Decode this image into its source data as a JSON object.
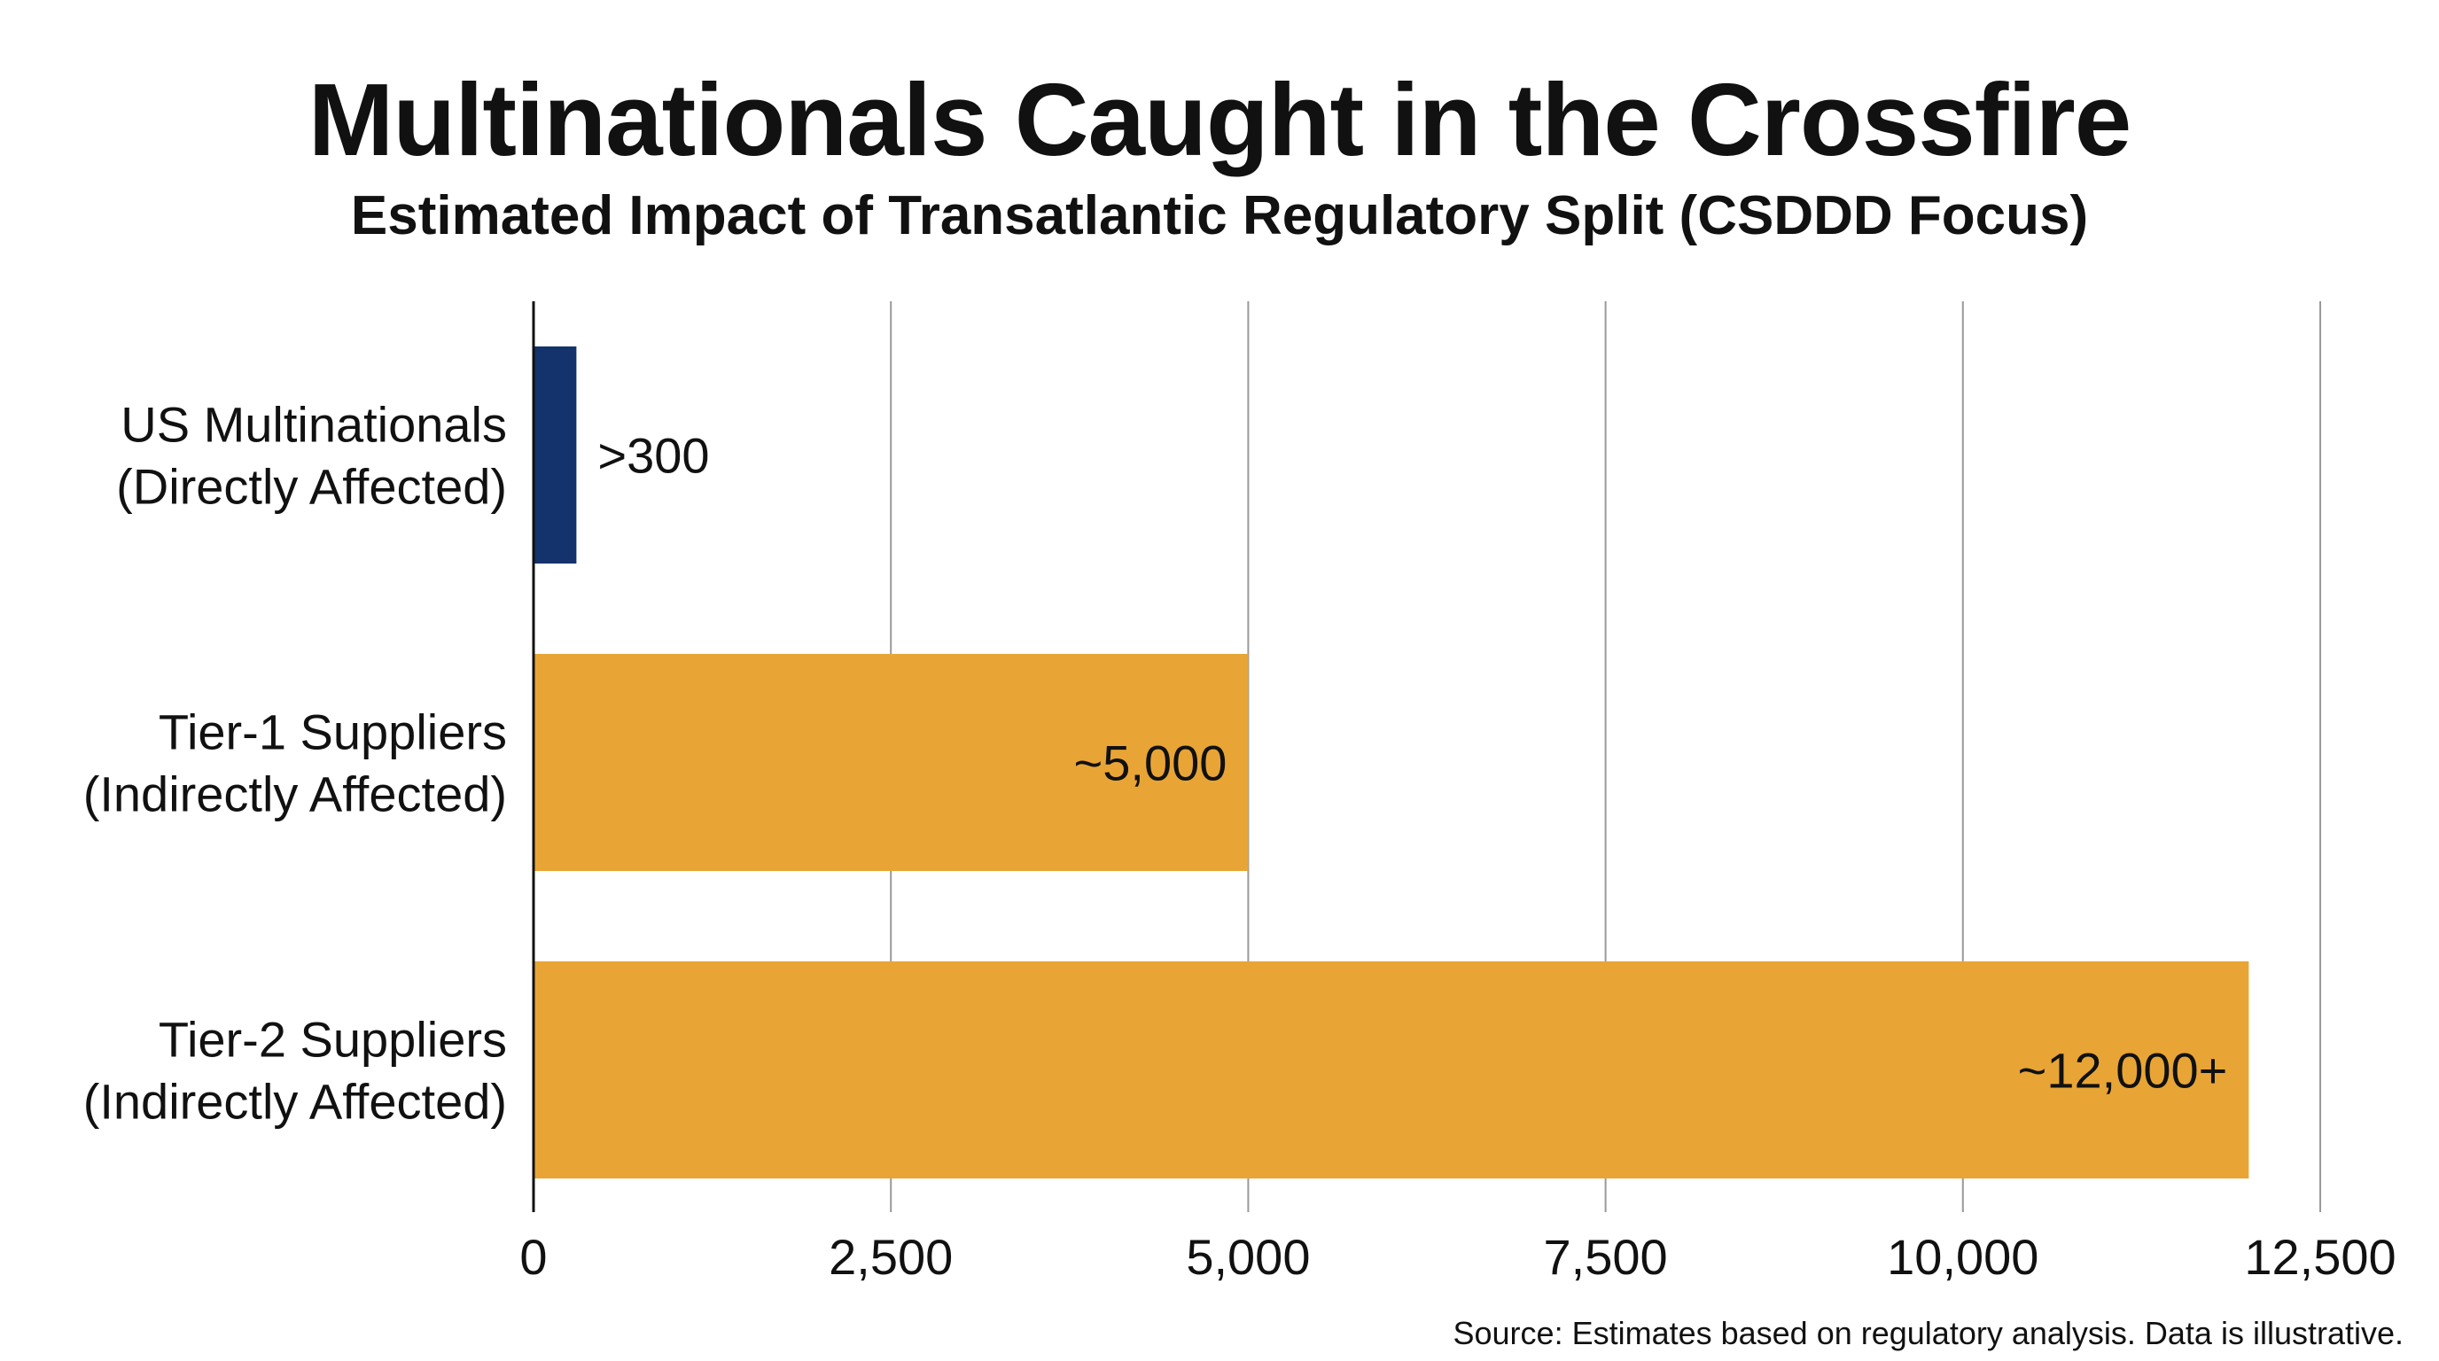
{
  "chart_data": {
    "type": "bar",
    "orientation": "horizontal",
    "title": "Multinationals Caught in the Crossfire",
    "subtitle": "Estimated Impact of Transatlantic Regulatory Split (CSDDD Focus)",
    "categories": [
      [
        "US Multinationals",
        "(Directly Affected)"
      ],
      [
        "Tier-1 Suppliers",
        "(Indirectly Affected)"
      ],
      [
        "Tier-2 Suppliers",
        "(Indirectly Affected)"
      ]
    ],
    "values": [
      300,
      5000,
      12000
    ],
    "data_labels": [
      ">300",
      "~5,000",
      "~12,000+"
    ],
    "colors": [
      "#14326b",
      "#e8a535",
      "#e8a535"
    ],
    "xlim": [
      0,
      12500
    ],
    "xticks": [
      0,
      2500,
      5000,
      7500,
      10000,
      12500
    ],
    "xtick_labels": [
      "0",
      "2,500",
      "5,000",
      "7,500",
      "10,000",
      "12,500"
    ],
    "grid": true,
    "grid_color": "#999999",
    "source": "Source: Estimates based on regulatory analysis. Data is illustrative."
  }
}
